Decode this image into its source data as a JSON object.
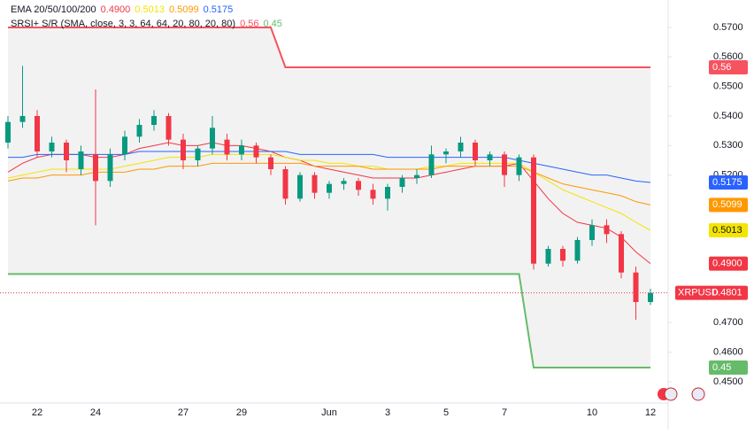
{
  "chart_data": {
    "type": "candlestick",
    "symbol": "XRPUSD",
    "ema_title": "EMA 20/50/100/200",
    "sr_title": "SRSI+ S/R (SMA, close, 3, 3, 64, 64, 20, 80, 20, 80)",
    "categories": [
      null,
      null,
      "22",
      null,
      null,
      null,
      "24",
      null,
      null,
      null,
      null,
      null,
      "27",
      null,
      null,
      null,
      "29",
      null,
      null,
      null,
      null,
      null,
      "Jun",
      null,
      null,
      null,
      "3",
      null,
      null,
      null,
      "5",
      null,
      null,
      null,
      "7",
      null,
      null,
      null,
      null,
      null,
      "10",
      null,
      null,
      null,
      "12"
    ],
    "open": [
      0.531,
      0.538,
      0.54,
      0.528,
      0.531,
      0.522,
      0.527,
      0.518,
      0.527,
      0.533,
      0.537,
      0.54,
      0.532,
      0.525,
      0.529,
      0.532,
      0.527,
      0.53,
      0.526,
      0.522,
      0.512,
      0.52,
      0.514,
      0.517,
      0.518,
      0.515,
      0.512,
      0.516,
      0.519,
      0.52,
      0.527,
      0.528,
      0.531,
      0.525,
      0.527,
      0.52,
      0.526,
      0.49,
      0.495,
      0.491,
      0.498,
      0.503,
      0.5,
      0.487,
      0.477
    ],
    "high": [
      0.54,
      0.557,
      0.542,
      0.533,
      0.532,
      0.53,
      0.549,
      0.529,
      0.535,
      0.539,
      0.542,
      0.541,
      0.534,
      0.53,
      0.54,
      0.534,
      0.532,
      0.531,
      0.527,
      0.523,
      0.521,
      0.521,
      0.518,
      0.519,
      0.519,
      0.517,
      0.517,
      0.52,
      0.522,
      0.53,
      0.529,
      0.533,
      0.532,
      0.528,
      0.528,
      0.527,
      0.527,
      0.496,
      0.496,
      0.499,
      0.505,
      0.505,
      0.501,
      0.489,
      0.4815
    ],
    "low": [
      0.529,
      0.536,
      0.526,
      0.526,
      0.521,
      0.52,
      0.503,
      0.516,
      0.525,
      0.531,
      0.535,
      0.53,
      0.522,
      0.523,
      0.527,
      0.525,
      0.525,
      0.524,
      0.52,
      0.51,
      0.511,
      0.512,
      0.512,
      0.515,
      0.513,
      0.51,
      0.508,
      0.514,
      0.517,
      0.519,
      0.524,
      0.526,
      0.523,
      0.523,
      0.516,
      0.518,
      0.488,
      0.489,
      0.489,
      0.49,
      0.496,
      0.497,
      0.485,
      0.471,
      0.476
    ],
    "close": [
      0.538,
      0.54,
      0.528,
      0.531,
      0.525,
      0.528,
      0.518,
      0.527,
      0.533,
      0.537,
      0.54,
      0.532,
      0.525,
      0.529,
      0.536,
      0.527,
      0.53,
      0.526,
      0.522,
      0.512,
      0.52,
      0.514,
      0.517,
      0.518,
      0.515,
      0.512,
      0.516,
      0.519,
      0.52,
      0.527,
      0.528,
      0.531,
      0.525,
      0.527,
      0.52,
      0.526,
      0.49,
      0.495,
      0.491,
      0.498,
      0.503,
      0.5,
      0.487,
      0.477,
      0.4801
    ],
    "up_color": "#089981",
    "down_color": "#f23645",
    "ema": [
      {
        "color": "#f23645",
        "last_label": "0.4900",
        "values": [
          0.521,
          0.524,
          0.526,
          0.527,
          0.527,
          0.527,
          0.526,
          0.526,
          0.527,
          0.529,
          0.53,
          0.531,
          0.53,
          0.53,
          0.531,
          0.53,
          0.53,
          0.529,
          0.528,
          0.526,
          0.525,
          0.523,
          0.522,
          0.521,
          0.52,
          0.519,
          0.519,
          0.519,
          0.519,
          0.52,
          0.521,
          0.522,
          0.523,
          0.523,
          0.523,
          0.524,
          0.518,
          0.512,
          0.507,
          0.504,
          0.503,
          0.502,
          0.499,
          0.494,
          0.49
        ]
      },
      {
        "color": "#f5e400",
        "last_label": "0.5013",
        "values": [
          0.519,
          0.52,
          0.521,
          0.522,
          0.522,
          0.522,
          0.522,
          0.522,
          0.523,
          0.524,
          0.525,
          0.526,
          0.526,
          0.526,
          0.527,
          0.527,
          0.527,
          0.527,
          0.527,
          0.526,
          0.525,
          0.525,
          0.524,
          0.524,
          0.523,
          0.523,
          0.522,
          0.522,
          0.522,
          0.523,
          0.523,
          0.524,
          0.524,
          0.524,
          0.524,
          0.524,
          0.521,
          0.518,
          0.515,
          0.513,
          0.511,
          0.509,
          0.507,
          0.504,
          0.5013
        ]
      },
      {
        "color": "#ff9800",
        "last_label": "0.5099",
        "values": [
          0.518,
          0.519,
          0.519,
          0.52,
          0.52,
          0.52,
          0.521,
          0.521,
          0.521,
          0.522,
          0.522,
          0.523,
          0.523,
          0.523,
          0.524,
          0.524,
          0.524,
          0.524,
          0.524,
          0.524,
          0.524,
          0.523,
          0.523,
          0.523,
          0.523,
          0.522,
          0.522,
          0.522,
          0.522,
          0.522,
          0.523,
          0.523,
          0.523,
          0.523,
          0.523,
          0.523,
          0.521,
          0.519,
          0.517,
          0.516,
          0.515,
          0.514,
          0.513,
          0.511,
          0.5099
        ]
      },
      {
        "color": "#2962ff",
        "last_label": "0.5175",
        "values": [
          0.526,
          0.526,
          0.527,
          0.527,
          0.527,
          0.527,
          0.527,
          0.527,
          0.527,
          0.528,
          0.528,
          0.528,
          0.528,
          0.528,
          0.528,
          0.528,
          0.528,
          0.528,
          0.528,
          0.528,
          0.527,
          0.527,
          0.527,
          0.527,
          0.527,
          0.527,
          0.526,
          0.526,
          0.526,
          0.526,
          0.526,
          0.526,
          0.526,
          0.526,
          0.526,
          0.525,
          0.524,
          0.523,
          0.522,
          0.521,
          0.52,
          0.52,
          0.519,
          0.518,
          0.5175
        ]
      }
    ],
    "sr_lines": [
      {
        "color": "#f7525f",
        "last_label": "0.56",
        "values": [
          0.57,
          0.57,
          0.57,
          0.57,
          0.57,
          0.57,
          0.57,
          0.57,
          0.57,
          0.57,
          0.57,
          0.57,
          0.57,
          0.57,
          0.57,
          0.57,
          0.57,
          0.57,
          0.57,
          0.5565,
          0.5565,
          0.5565,
          0.5565,
          0.5565,
          0.5565,
          0.5565,
          0.5565,
          0.5565,
          0.5565,
          0.5565,
          0.5565,
          0.5565,
          0.5565,
          0.5565,
          0.5565,
          0.5565,
          0.5565,
          0.5565,
          0.5565,
          0.5565,
          0.5565,
          0.5565,
          0.5565,
          0.5565,
          0.5565
        ]
      },
      {
        "color": "#66bb6a",
        "last_label": "0.45",
        "values": [
          0.4865,
          0.4865,
          0.4865,
          0.4865,
          0.4865,
          0.4865,
          0.4865,
          0.4865,
          0.4865,
          0.4865,
          0.4865,
          0.4865,
          0.4865,
          0.4865,
          0.4865,
          0.4865,
          0.4865,
          0.4865,
          0.4865,
          0.4865,
          0.4865,
          0.4865,
          0.4865,
          0.4865,
          0.4865,
          0.4865,
          0.4865,
          0.4865,
          0.4865,
          0.4865,
          0.4865,
          0.4865,
          0.4865,
          0.4865,
          0.4865,
          0.4865,
          0.4548,
          0.4548,
          0.4548,
          0.4548,
          0.4548,
          0.4548,
          0.4548,
          0.4548,
          0.4548
        ]
      }
    ],
    "sr_fill": "#f2f2f2",
    "ylim": [
      0.4428,
      0.5793
    ],
    "yticks": [
      {
        "value": 0.57,
        "label": "0.5700"
      },
      {
        "value": 0.56,
        "label": "0.5600"
      },
      {
        "value": 0.55,
        "label": "0.5500"
      },
      {
        "value": 0.54,
        "label": "0.5400"
      },
      {
        "value": 0.53,
        "label": "0.5300"
      },
      {
        "value": 0.52,
        "label": "0.5200"
      },
      {
        "value": 0.47,
        "label": "0.4700"
      },
      {
        "value": 0.46,
        "label": "0.4600"
      },
      {
        "value": 0.45,
        "label": "0.4500"
      }
    ]
  }
}
